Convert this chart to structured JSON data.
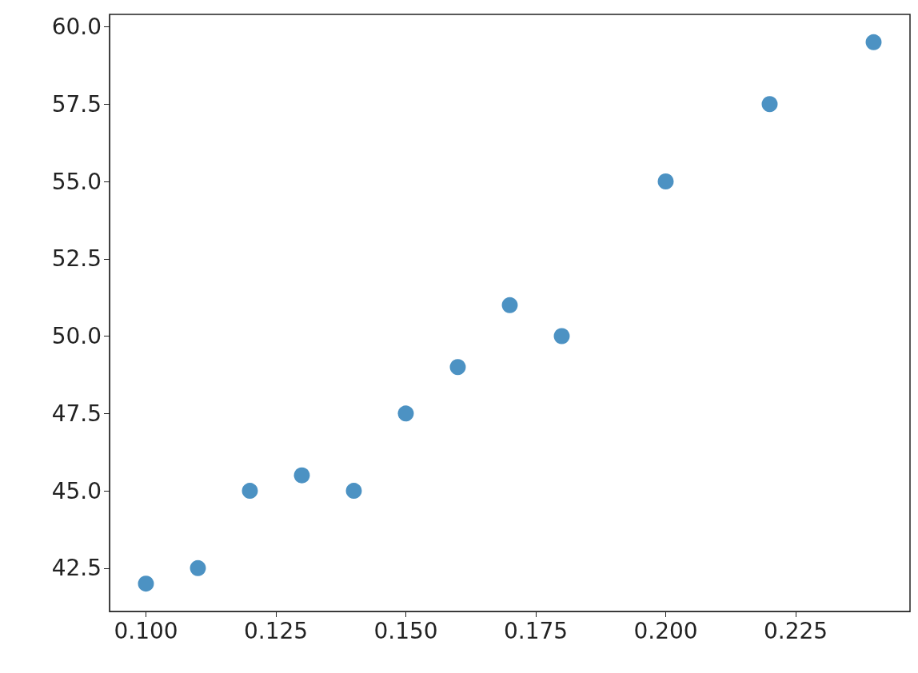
{
  "chart_data": {
    "type": "scatter",
    "x": [
      0.1,
      0.11,
      0.12,
      0.13,
      0.14,
      0.15,
      0.16,
      0.17,
      0.18,
      0.2,
      0.22,
      0.24
    ],
    "series": [
      {
        "color": "#1f77b4",
        "values": [
          42,
          42.5,
          45,
          45.5,
          45,
          47.5,
          49,
          51,
          50,
          55,
          57.5,
          59.5
        ]
      }
    ],
    "xlim": [
      0.093,
      0.247
    ],
    "xticks": [
      {
        "value": 0.1,
        "label": "0.100"
      },
      0.125,
      {
        "value": 0.15,
        "label": "0.150"
      },
      0.175,
      {
        "value": 0.2,
        "label": "0.200"
      },
      0.225
    ],
    "ylim": [
      41.1,
      60.4
    ],
    "yticks": [
      42.5,
      {
        "value": 45,
        "label": "45.0"
      },
      47.5,
      {
        "value": 50,
        "label": "50.0"
      },
      52.5,
      {
        "value": 55,
        "label": "55.0"
      },
      57.5,
      {
        "value": 60,
        "label": "60.0"
      }
    ],
    "marker": "circle",
    "grid": false
  }
}
